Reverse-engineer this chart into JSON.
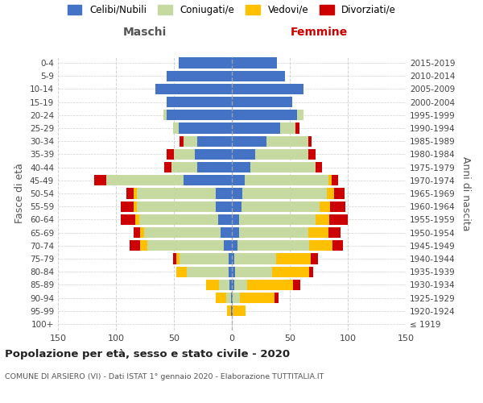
{
  "age_groups": [
    "100+",
    "95-99",
    "90-94",
    "85-89",
    "80-84",
    "75-79",
    "70-74",
    "65-69",
    "60-64",
    "55-59",
    "50-54",
    "45-49",
    "40-44",
    "35-39",
    "30-34",
    "25-29",
    "20-24",
    "15-19",
    "10-14",
    "5-9",
    "0-4"
  ],
  "birth_years": [
    "≤ 1919",
    "1920-1924",
    "1925-1929",
    "1930-1934",
    "1935-1939",
    "1940-1944",
    "1945-1949",
    "1950-1954",
    "1955-1959",
    "1960-1964",
    "1965-1969",
    "1970-1974",
    "1975-1979",
    "1980-1984",
    "1985-1989",
    "1990-1994",
    "1995-1999",
    "2000-2004",
    "2005-2009",
    "2010-2014",
    "2015-2019"
  ],
  "maschi": {
    "celibi": [
      0,
      1,
      1,
      2,
      3,
      3,
      7,
      10,
      12,
      14,
      14,
      42,
      30,
      32,
      30,
      46,
      56,
      56,
      66,
      56,
      46
    ],
    "coniugati": [
      0,
      0,
      4,
      9,
      36,
      42,
      66,
      66,
      68,
      68,
      68,
      66,
      22,
      18,
      12,
      5,
      3,
      0,
      0,
      0,
      0
    ],
    "vedovi": [
      0,
      3,
      9,
      11,
      9,
      3,
      6,
      3,
      3,
      3,
      3,
      0,
      0,
      0,
      0,
      0,
      0,
      0,
      0,
      0,
      0
    ],
    "divorziati": [
      0,
      0,
      0,
      0,
      0,
      3,
      9,
      6,
      13,
      11,
      6,
      11,
      6,
      6,
      3,
      0,
      0,
      0,
      0,
      0,
      0
    ]
  },
  "femmine": {
    "nubili": [
      0,
      1,
      1,
      2,
      3,
      2,
      5,
      6,
      6,
      8,
      9,
      11,
      16,
      20,
      30,
      42,
      56,
      52,
      62,
      46,
      39
    ],
    "coniugate": [
      0,
      0,
      6,
      11,
      32,
      36,
      62,
      60,
      66,
      68,
      73,
      72,
      56,
      46,
      36,
      13,
      6,
      0,
      0,
      0,
      0
    ],
    "vedove": [
      0,
      11,
      30,
      40,
      32,
      30,
      20,
      17,
      12,
      9,
      6,
      3,
      0,
      0,
      0,
      0,
      0,
      0,
      0,
      0,
      0
    ],
    "divorziate": [
      0,
      0,
      3,
      6,
      3,
      6,
      9,
      11,
      16,
      13,
      9,
      6,
      6,
      6,
      3,
      3,
      0,
      0,
      0,
      0,
      0
    ]
  },
  "colors": {
    "celibi_nubili": "#4472c4",
    "coniugati": "#c5d9a0",
    "vedovi": "#ffc000",
    "divorziati": "#cc0000"
  },
  "title": "Popolazione per età, sesso e stato civile - 2020",
  "subtitle": "COMUNE DI ARSIERO (VI) - Dati ISTAT 1° gennaio 2020 - Elaborazione TUTTITALIA.IT",
  "xlabel_left": "Maschi",
  "xlabel_right": "Femmine",
  "ylabel_left": "Fasce di età",
  "ylabel_right": "Anni di nascita",
  "xlim": 150,
  "legend_labels": [
    "Celibi/Nubili",
    "Coniugati/e",
    "Vedovi/e",
    "Divorziati/e"
  ],
  "background_color": "#ffffff",
  "grid_color": "#cccccc"
}
